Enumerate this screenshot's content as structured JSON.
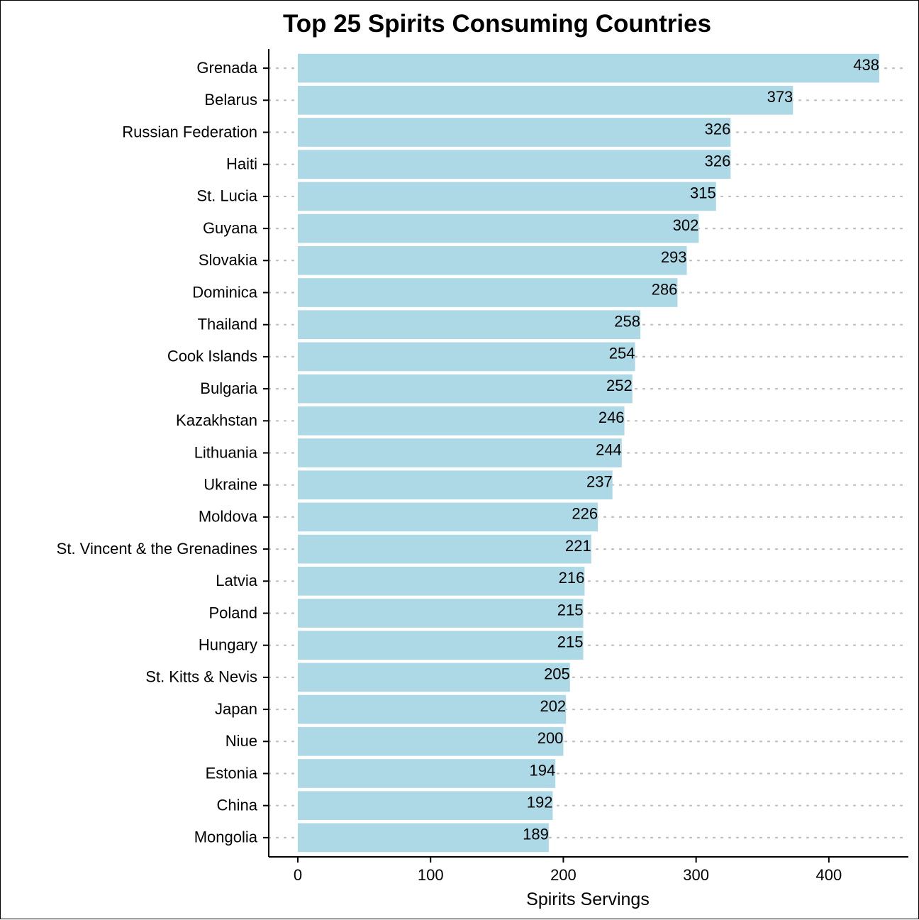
{
  "chart_data": {
    "type": "bar",
    "orientation": "horizontal",
    "title": "Top 25 Spirits Consuming Countries",
    "xlabel": "Spirits Servings",
    "ylabel": "",
    "categories": [
      "Grenada",
      "Belarus",
      "Russian Federation",
      "Haiti",
      "St. Lucia",
      "Guyana",
      "Slovakia",
      "Dominica",
      "Thailand",
      "Cook Islands",
      "Bulgaria",
      "Kazakhstan",
      "Lithuania",
      "Ukraine",
      "Moldova",
      "St. Vincent & the Grenadines",
      "Latvia",
      "Poland",
      "Hungary",
      "St. Kitts & Nevis",
      "Japan",
      "Niue",
      "Estonia",
      "China",
      "Mongolia"
    ],
    "values": [
      438,
      373,
      326,
      326,
      315,
      302,
      293,
      286,
      258,
      254,
      252,
      246,
      244,
      237,
      226,
      221,
      216,
      215,
      215,
      205,
      202,
      200,
      194,
      192,
      189
    ],
    "value_labels": [
      "438",
      "373",
      "326",
      "326",
      "315",
      "302",
      "293",
      "286",
      "258",
      "254",
      "252",
      "246",
      "244",
      "237",
      "226",
      "221",
      "216",
      "215",
      "215",
      "205",
      "202",
      "200",
      "194",
      "192",
      "189"
    ],
    "xticks": [
      "0",
      "100",
      "200",
      "300",
      "400"
    ],
    "xlim": [
      -21.9,
      459.9
    ],
    "grid": "horizontal dotted gridlines",
    "legend": "none",
    "bar_color": "#ADD8E6",
    "grid_color": "#BEBEBE"
  }
}
